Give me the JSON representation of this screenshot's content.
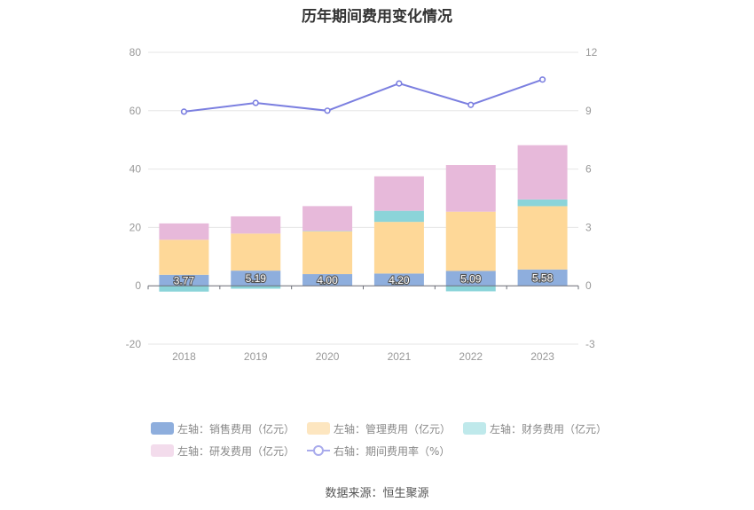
{
  "chart_data": {
    "type": "bar",
    "title": "历年期间费用变化情况",
    "categories": [
      "2018",
      "2019",
      "2020",
      "2021",
      "2022",
      "2023"
    ],
    "left_axis": {
      "min": -20,
      "max": 80,
      "ticks": [
        -20,
        0,
        20,
        40,
        60,
        80
      ]
    },
    "right_axis": {
      "min": -3,
      "max": 12,
      "ticks": [
        -3,
        0,
        3,
        6,
        9,
        12
      ]
    },
    "series": [
      {
        "name": "左轴：销售费用（亿元）",
        "type": "bar",
        "axis": "left",
        "color": "#8eaedd",
        "values": [
          3.77,
          5.19,
          4.0,
          4.2,
          5.09,
          5.58
        ],
        "labels": [
          "3.77",
          "5.19",
          "4.00",
          "4.20",
          "5.09",
          "5.58"
        ]
      },
      {
        "name": "左轴：管理费用（亿元）",
        "type": "bar",
        "axis": "left",
        "color": "#fed898",
        "values": [
          12.0,
          12.7,
          14.7,
          17.7,
          20.3,
          21.7
        ]
      },
      {
        "name": "左轴：财务费用（亿元）",
        "type": "bar",
        "axis": "left",
        "color": "#8bd4d9",
        "values": [
          -2.0,
          -1.0,
          0.1,
          3.8,
          -1.9,
          2.3
        ]
      },
      {
        "name": "左轴：研发费用（亿元）",
        "type": "bar",
        "axis": "left",
        "color": "#e7b9da",
        "values": [
          5.6,
          5.9,
          8.5,
          11.8,
          16.0,
          18.6
        ]
      },
      {
        "name": "右轴：期间费用率（%）",
        "type": "line",
        "axis": "right",
        "color": "#7b7fe0",
        "values": [
          8.95,
          9.4,
          9.0,
          10.4,
          9.3,
          10.6
        ]
      }
    ],
    "grid": true,
    "legend_position": "bottom",
    "source": "数据来源：恒生聚源"
  }
}
